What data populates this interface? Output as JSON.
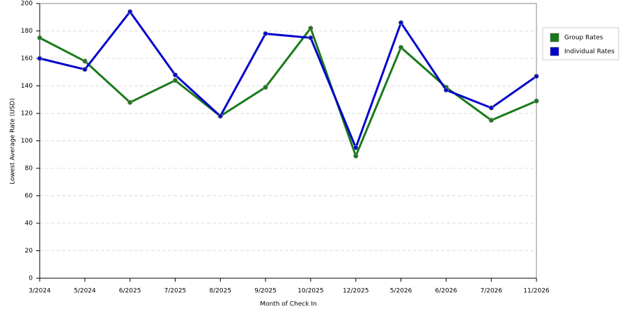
{
  "chart_data": {
    "type": "line",
    "x_label": "Month of Check In",
    "y_label": "Lowest Average Rate (USD)",
    "categories": [
      "3/2024",
      "5/2024",
      "6/2025",
      "7/2025",
      "8/2025",
      "9/2025",
      "10/2025",
      "12/2025",
      "5/2026",
      "6/2026",
      "7/2026",
      "11/2026"
    ],
    "series": [
      {
        "name": "Group Rates",
        "color": "#1a7a1a",
        "values": [
          175,
          158,
          128,
          144,
          118,
          139,
          182,
          89,
          168,
          139,
          115,
          129
        ]
      },
      {
        "name": "Individual Rates",
        "color": "#0000cc",
        "values": [
          160,
          152,
          194,
          148,
          118,
          178,
          175,
          95,
          186,
          137,
          124,
          147
        ]
      }
    ],
    "ylim": [
      0,
      200
    ],
    "yticks": [
      0,
      20,
      40,
      60,
      80,
      100,
      120,
      140,
      160,
      180,
      200
    ],
    "grid": true,
    "legend": "right"
  }
}
